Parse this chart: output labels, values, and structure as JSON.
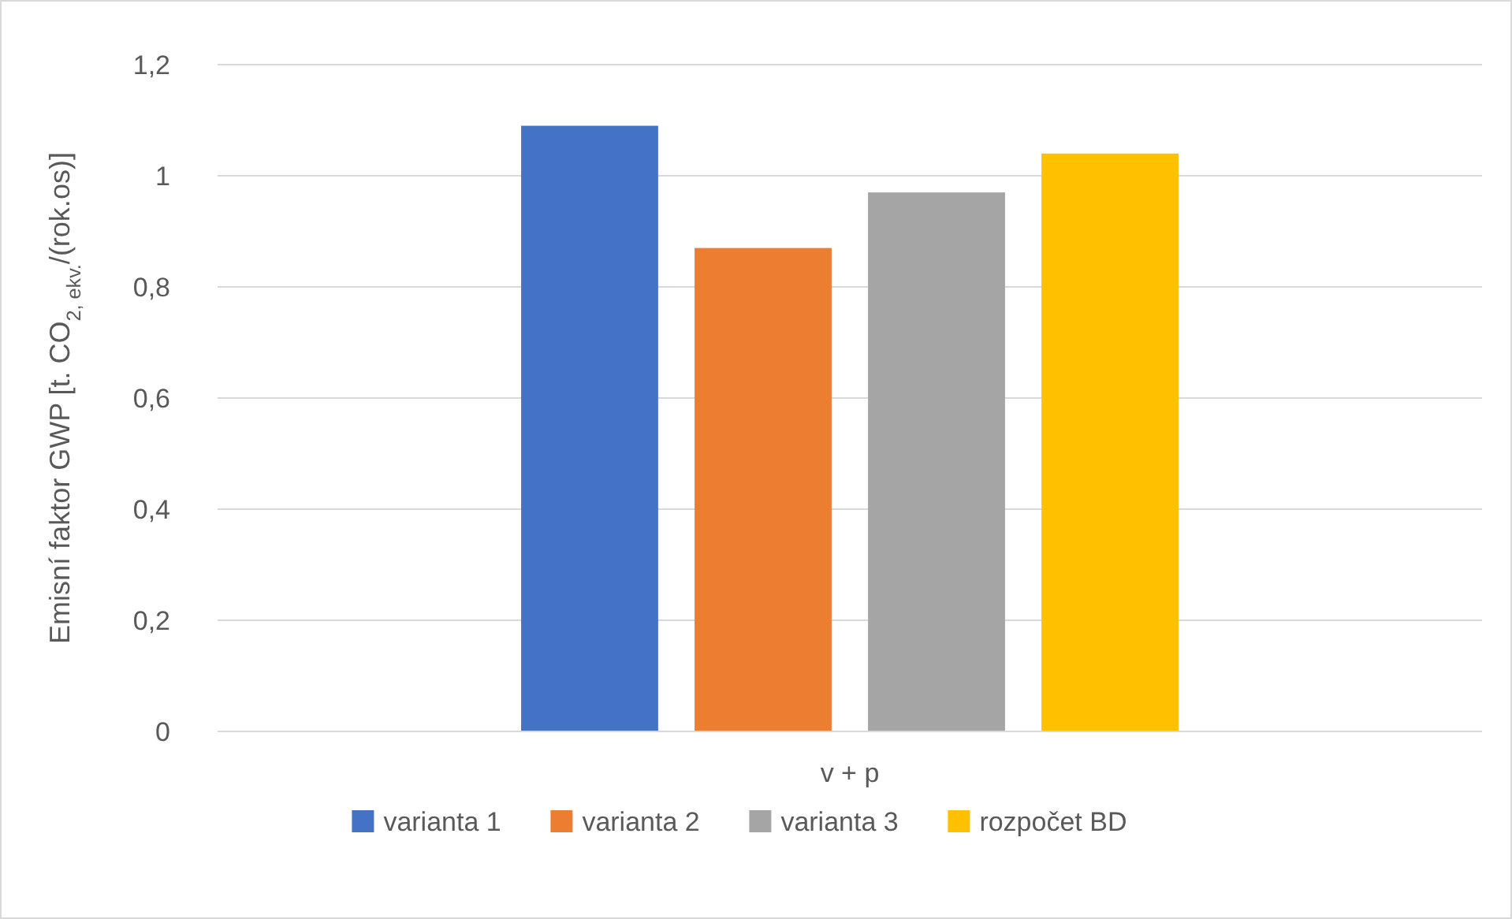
{
  "chart_data": {
    "type": "bar",
    "ylabel": "Emisní faktor GWP [t. CO$_{2, ekv.}$/(rok.os)]",
    "categories": [
      "v + p"
    ],
    "series": [
      {
        "name": "varianta 1",
        "color": "#4472c4",
        "values": [
          1.09
        ]
      },
      {
        "name": "varianta 2",
        "color": "#ed7d31",
        "values": [
          0.87
        ]
      },
      {
        "name": "varianta 3",
        "color": "#a5a5a5",
        "values": [
          0.97
        ]
      },
      {
        "name": "rozpočet BD",
        "color": "#ffc000",
        "values": [
          1.04
        ]
      }
    ],
    "ylim": [
      0,
      1.2
    ],
    "yticks": [
      0,
      {
        "value": 0.2,
        "label": "0,2"
      },
      {
        "value": 0.4,
        "label": "0,4"
      },
      {
        "value": 0.6,
        "label": "0,6"
      },
      {
        "value": 0.8,
        "label": "0,8"
      },
      {
        "value": 1,
        "label": "1"
      },
      {
        "value": 1.2,
        "label": "1,2"
      }
    ],
    "grid": "y",
    "legend": "bottom"
  }
}
